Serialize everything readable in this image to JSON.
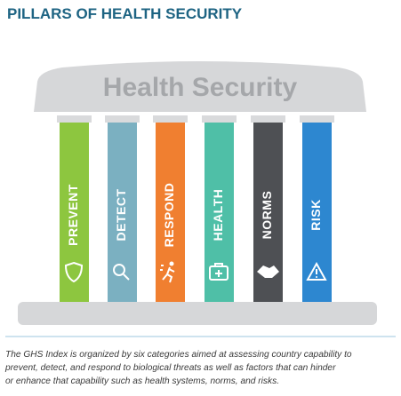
{
  "title": "PILLARS OF HEALTH SECURITY",
  "roof_label": "Health Security",
  "pillars": [
    {
      "label": "PREVENT",
      "color": "#8dc63f"
    },
    {
      "label": "DETECT",
      "color": "#7bb0c1"
    },
    {
      "label": "RESPOND",
      "color": "#f07f30"
    },
    {
      "label": "HEALTH",
      "color": "#4fbfa7"
    },
    {
      "label": "NORMS",
      "color": "#4e5054"
    },
    {
      "label": "RISK",
      "color": "#2d87d0"
    }
  ],
  "caption": [
    "The GHS Index is organized by six categories aimed at assessing country capability to",
    "prevent, detect, and respond to biological threats as well as factors that can hinder",
    "or enhance that capability such as health systems, norms, and risks."
  ]
}
